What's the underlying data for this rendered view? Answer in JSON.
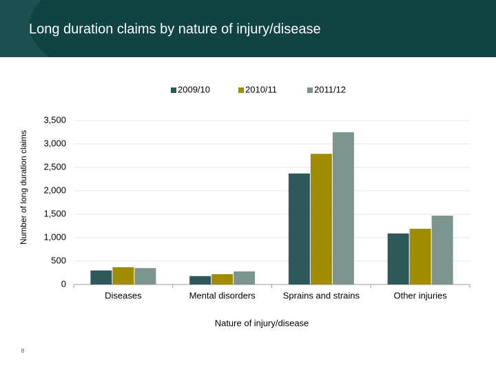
{
  "chart_data": {
    "type": "bar",
    "title": "Long duration claims by nature of injury/disease",
    "x_label": "Nature of injury/disease",
    "y_label": "Number of long duration claims",
    "categories": [
      "Diseases",
      "Mental disorders",
      "Sprains and strains",
      "Other injuries"
    ],
    "series": [
      {
        "name": "2009/10",
        "color": "#2e5859",
        "values": [
          300,
          180,
          2370,
          1090
        ]
      },
      {
        "name": "2010/11",
        "color": "#a08c00",
        "values": [
          370,
          220,
          2790,
          1190
        ]
      },
      {
        "name": "2011/12",
        "color": "#7c958e",
        "values": [
          350,
          280,
          3250,
          1470
        ]
      }
    ],
    "ylim": [
      0,
      3500
    ],
    "yticks": [
      0,
      500,
      {
        "value": 1000,
        "label": "1,000"
      },
      {
        "value": 1500,
        "label": "1,500"
      },
      {
        "value": 2000,
        "label": "2,000"
      },
      {
        "value": 2500,
        "label": "2,500"
      },
      {
        "value": 3000,
        "label": "3,000"
      },
      {
        "value": 3500,
        "label": "3,500"
      }
    ],
    "grid": true,
    "legend": "top"
  },
  "slide": {
    "page_number": "8"
  }
}
